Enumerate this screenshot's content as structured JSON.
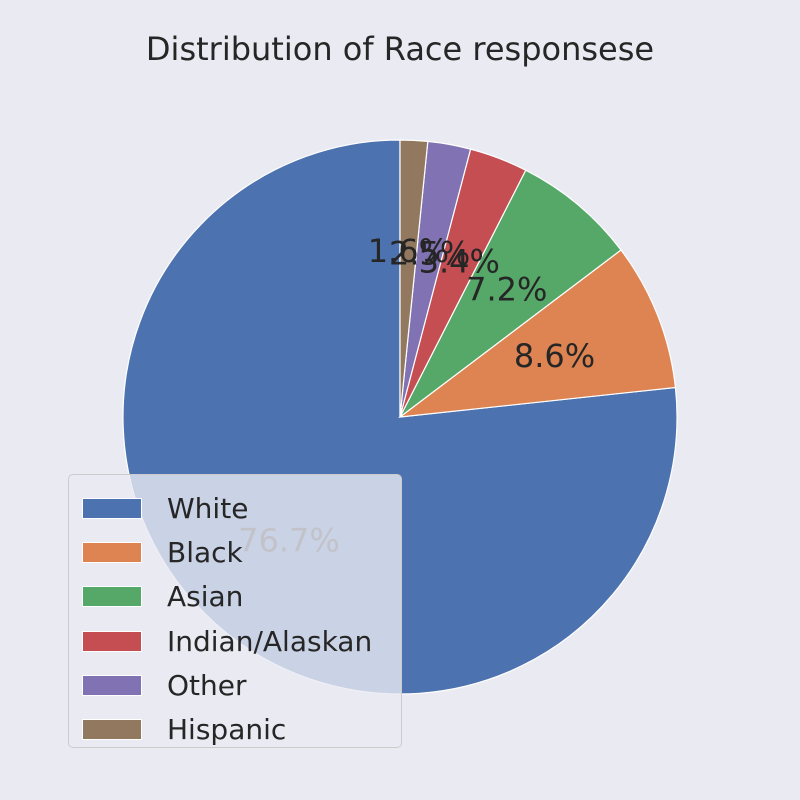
{
  "chart_data": {
    "type": "pie",
    "title": "Distribution of Race responsese",
    "categories": [
      "White",
      "Black",
      "Asian",
      "Indian/Alaskan",
      "Other",
      "Hispanic"
    ],
    "values": [
      76.7,
      8.6,
      7.2,
      3.4,
      2.5,
      1.6
    ],
    "labels": [
      "76.7%",
      "8.6%",
      "7.2%",
      "3.4%",
      "2.5%",
      "1.6%"
    ],
    "colors": [
      "#4c72b0",
      "#dd8452",
      "#55a868",
      "#c44e52",
      "#8172b3",
      "#937860"
    ],
    "start_angle_deg": 90,
    "direction": "counterclockwise",
    "legend_position": "lower-left"
  }
}
